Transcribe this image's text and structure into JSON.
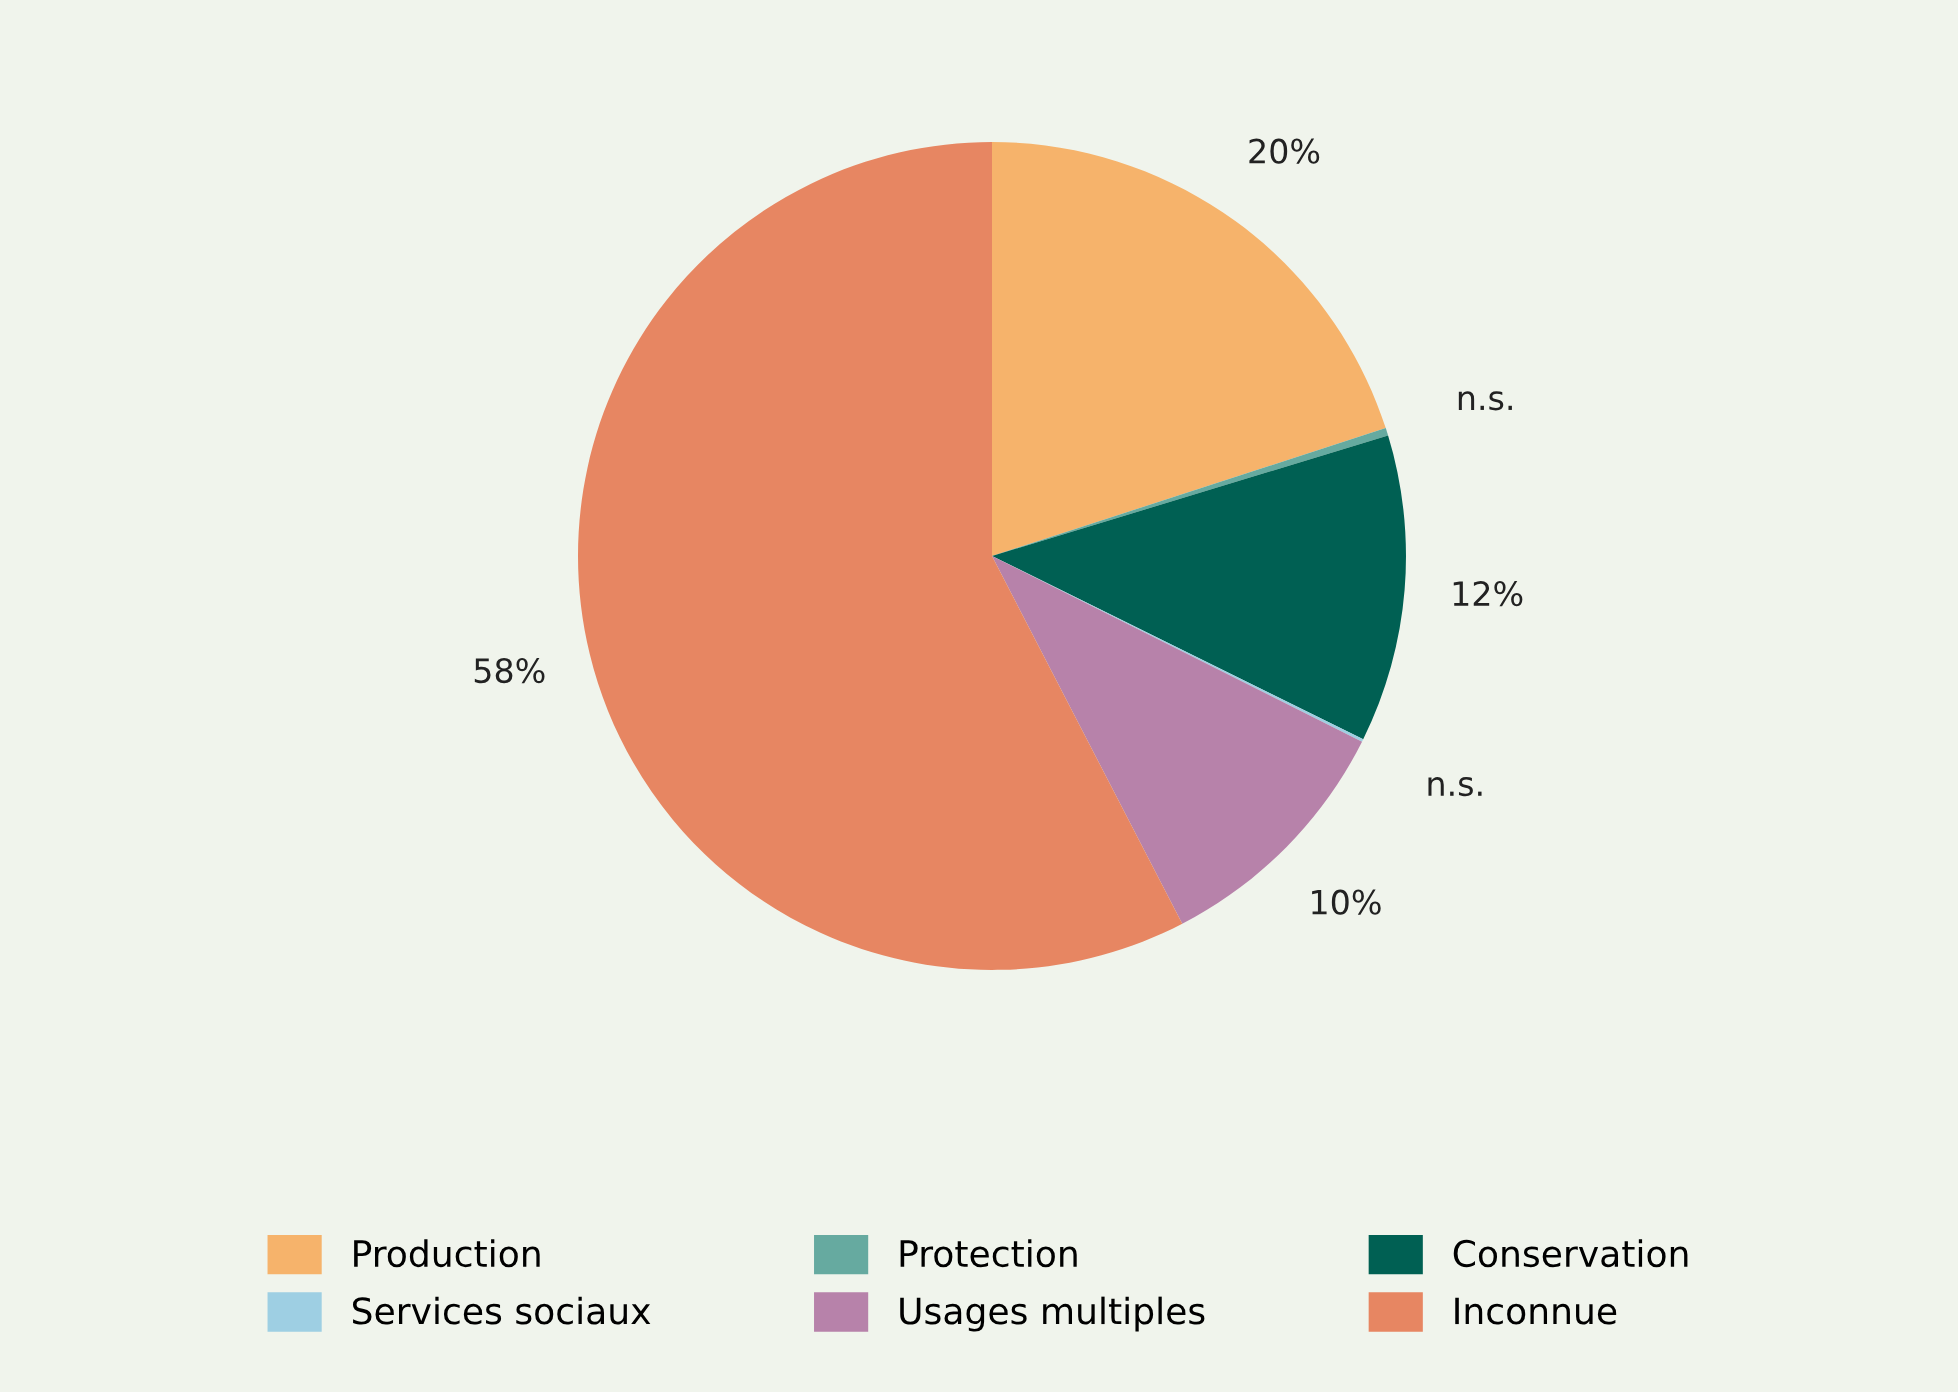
{
  "chart_data": {
    "type": "pie",
    "categories": [
      "Production",
      "Protection",
      "Conservation",
      "Services sociaux",
      "Usages multiples",
      "Inconnue"
    ],
    "values": [
      20,
      0.3,
      12,
      0.1,
      10,
      57.6
    ],
    "value_labels": [
      "20%",
      "n.s.",
      "12%",
      "n.s.",
      "10%",
      "58%"
    ],
    "colors": [
      "#f6b36b",
      "#66aaa0",
      "#006053",
      "#9ecfe3",
      "#b782aa",
      "#e78662"
    ],
    "legend": "bottom"
  }
}
